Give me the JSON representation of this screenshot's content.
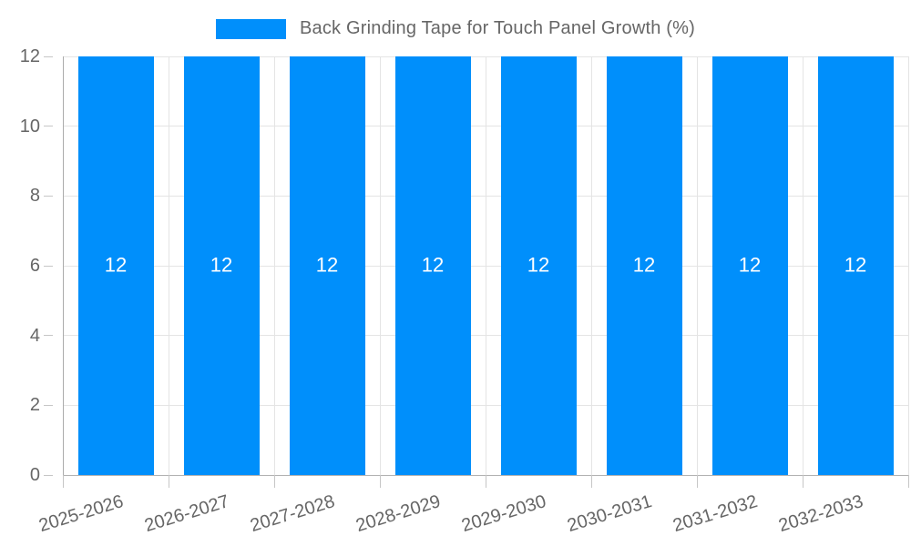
{
  "chart_data": {
    "type": "bar",
    "title": "Back Grinding Tape for Touch Panel Growth (%)",
    "categories": [
      "2025-2026",
      "2026-2027",
      "2027-2028",
      "2028-2029",
      "2029-2030",
      "2030-2031",
      "2031-2032",
      "2032-2033"
    ],
    "series": [
      {
        "name": "Back Grinding Tape for Touch Panel Growth (%)",
        "values": [
          12,
          12,
          12,
          12,
          12,
          12,
          12,
          12
        ]
      }
    ],
    "bar_labels": [
      "12",
      "12",
      "12",
      "12",
      "12",
      "12",
      "12",
      "12"
    ],
    "xlabel": "",
    "ylabel": "",
    "ylim": [
      0,
      12
    ],
    "yticks": [
      0,
      2,
      4,
      6,
      8,
      10,
      12
    ],
    "ytick_labels": [
      "0",
      "2",
      "4",
      "6",
      "8",
      "10",
      "12"
    ],
    "grid": true,
    "legend_position": "top",
    "colors": {
      "bar": "#008FFB",
      "bar_label": "#FFFFFF",
      "axis_text": "#666666",
      "gridline": "#E4E4E4",
      "axis_line": "#ABABAB",
      "zero_line": "#B2B2B2",
      "tick_mark": "#C6C6C6",
      "background": "#FFFFFF"
    }
  }
}
